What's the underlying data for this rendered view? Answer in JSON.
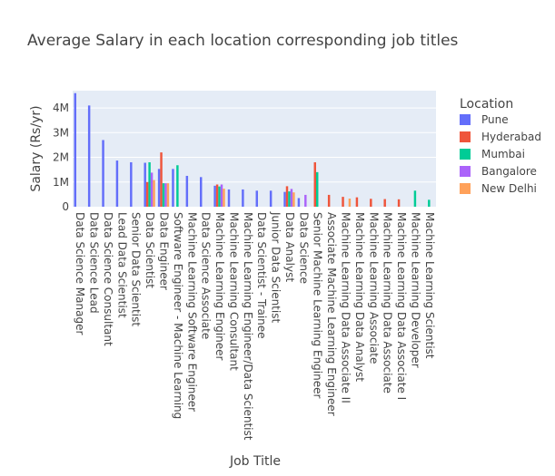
{
  "chart_data": {
    "type": "bar",
    "title": "Average Salary in each location corresponding job titles",
    "xlabel": "Job Title",
    "ylabel": "Salary (Rs/yr)",
    "ylim": [
      0,
      4700000
    ],
    "yticks": [
      0,
      1000000,
      2000000,
      3000000,
      4000000
    ],
    "ytick_labels": [
      "0",
      "1M",
      "2M",
      "3M",
      "4M"
    ],
    "grid": true,
    "legend_title": "Location",
    "legend_position": "right",
    "categories": [
      "Data Science Manager",
      "Data Science Lead",
      "Data Science Consultant",
      "Lead Data Scientist",
      "Senior Data Scientist",
      "Data Scientist",
      "Data Engineer",
      "Software Engineer - Machine Learning",
      "Machine Learning Software Engineer",
      "Data Science Associate",
      "Machine Learning Engineer",
      "Machine Learning Consultant",
      "Machine Learning Engineer/Data Scientist",
      "Data Scientist - Trainee",
      "Junior Data Scientist",
      "Data Analyst",
      "Data Science",
      "Senior Machine Learning Engineer",
      "Associate Machine Learning Engineer",
      "Machine Learning Data Associate II",
      "Machine Learning Data Analyst",
      "Machine Learning Associate",
      "Machine Learning Data Associate",
      "Machine Learning Data Associate I",
      "Machine Learning Developer",
      "Machine Learning Scientist"
    ],
    "series": [
      {
        "name": "Pune",
        "color": "#636efa",
        "values": [
          4600000,
          4100000,
          2700000,
          1870000,
          1800000,
          1780000,
          1530000,
          1530000,
          1250000,
          1200000,
          850000,
          700000,
          700000,
          650000,
          650000,
          600000,
          350000,
          null,
          null,
          null,
          null,
          null,
          null,
          null,
          null,
          null
        ]
      },
      {
        "name": "Hyderabad",
        "color": "#ef553b",
        "values": [
          null,
          null,
          null,
          null,
          null,
          1000000,
          2200000,
          null,
          null,
          null,
          900000,
          null,
          null,
          null,
          null,
          830000,
          null,
          1800000,
          480000,
          400000,
          380000,
          320000,
          310000,
          300000,
          null,
          null
        ]
      },
      {
        "name": "Mumbai",
        "color": "#00cc96",
        "values": [
          null,
          null,
          null,
          null,
          null,
          1800000,
          950000,
          1680000,
          null,
          null,
          820000,
          null,
          null,
          null,
          null,
          620000,
          null,
          1400000,
          null,
          null,
          null,
          null,
          null,
          null,
          650000,
          280000
        ]
      },
      {
        "name": "Bangalore",
        "color": "#ab63fa",
        "values": [
          null,
          null,
          null,
          null,
          null,
          1380000,
          950000,
          null,
          null,
          null,
          900000,
          null,
          null,
          null,
          null,
          720000,
          480000,
          null,
          null,
          null,
          null,
          null,
          null,
          null,
          null,
          null
        ]
      },
      {
        "name": "New Delhi",
        "color": "#ffa15a",
        "values": [
          null,
          null,
          null,
          null,
          null,
          1080000,
          950000,
          null,
          null,
          null,
          730000,
          null,
          null,
          null,
          null,
          580000,
          null,
          null,
          null,
          330000,
          null,
          null,
          null,
          null,
          null,
          null
        ]
      }
    ]
  }
}
